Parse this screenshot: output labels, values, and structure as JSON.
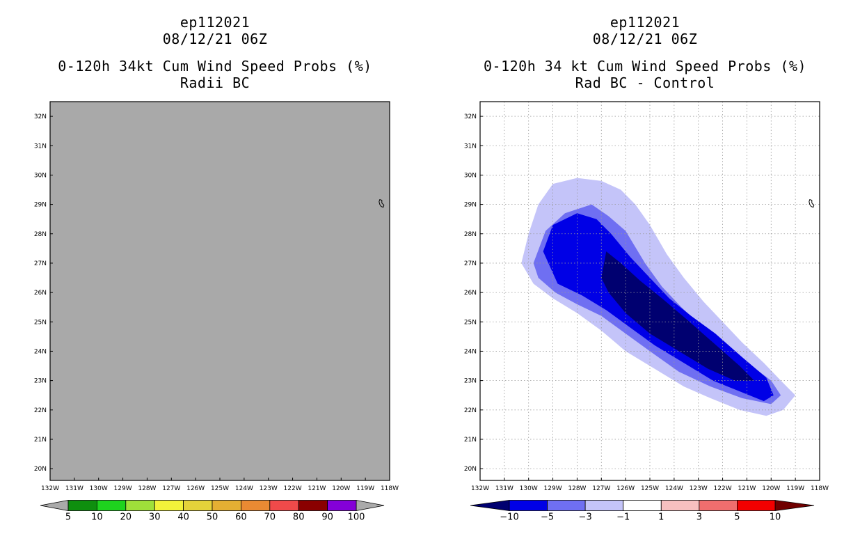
{
  "chart_data": [
    {
      "type": "heatmap",
      "title_lines": [
        "ep112021",
        "08/12/21 06Z",
        "0-120h 34kt Cum Wind Speed Probs (%)",
        "Radii BC"
      ],
      "background_color": "#a9a9a9",
      "xlabel": "",
      "ylabel": "",
      "x_ticks": [
        "132W",
        "131W",
        "130W",
        "129W",
        "128W",
        "127W",
        "126W",
        "125W",
        "124W",
        "123W",
        "122W",
        "121W",
        "120W",
        "119W",
        "118W"
      ],
      "y_ticks": [
        "32N",
        "31N",
        "30N",
        "29N",
        "28N",
        "27N",
        "26N",
        "25N",
        "24N",
        "23N",
        "22N",
        "21N",
        "20N"
      ],
      "xlim": [
        -132,
        -118
      ],
      "ylim": [
        19.6,
        32.5
      ],
      "grid": false,
      "colorbar": {
        "labels": [
          "5",
          "10",
          "20",
          "30",
          "40",
          "50",
          "60",
          "70",
          "80",
          "90",
          "100"
        ],
        "colors": [
          "#0e8f0e",
          "#1ed31e",
          "#9fe03a",
          "#f2f23a",
          "#e5d23a",
          "#e5af33",
          "#ea8a33",
          "#f04a4a",
          "#8a0000",
          "#8400d8"
        ],
        "end_colors": [
          "#aaaaaa",
          "#aaaaaa"
        ]
      }
    },
    {
      "type": "heatmap",
      "title_lines": [
        "ep112021",
        "08/12/21 06Z",
        "0-120h 34 kt Cum Wind Speed Probs (%)",
        "Rad BC - Control"
      ],
      "background_color": "#ffffff",
      "xlabel": "",
      "ylabel": "",
      "x_ticks": [
        "132W",
        "131W",
        "130W",
        "129W",
        "128W",
        "127W",
        "126W",
        "125W",
        "124W",
        "123W",
        "122W",
        "121W",
        "120W",
        "119W",
        "118W"
      ],
      "y_ticks": [
        "32N",
        "31N",
        "30N",
        "29N",
        "28N",
        "27N",
        "26N",
        "25N",
        "24N",
        "23N",
        "22N",
        "21N",
        "20N"
      ],
      "xlim": [
        -132,
        -118
      ],
      "ylim": [
        19.6,
        32.5
      ],
      "grid": true,
      "colorbar": {
        "labels": [
          "-10",
          "-5",
          "-3",
          "-1",
          "1",
          "3",
          "5",
          "10"
        ],
        "colors": [
          "#0000e6",
          "#6f6ff2",
          "#c4c4f9",
          "#ffffff",
          "#f7c0c0",
          "#f06e6e",
          "#f20000"
        ],
        "end_colors": [
          "#000070",
          "#700000"
        ]
      },
      "contours": [
        {
          "level": "-1",
          "color": "#c4c4f9",
          "points": [
            [
              -130.3,
              27.0
            ],
            [
              -130.0,
              28.0
            ],
            [
              -129.6,
              29.0
            ],
            [
              -129.0,
              29.7
            ],
            [
              -128.0,
              29.9
            ],
            [
              -127.0,
              29.8
            ],
            [
              -126.2,
              29.5
            ],
            [
              -125.6,
              29.0
            ],
            [
              -125.0,
              28.3
            ],
            [
              -124.3,
              27.3
            ],
            [
              -123.6,
              26.5
            ],
            [
              -122.8,
              25.7
            ],
            [
              -122.0,
              25.0
            ],
            [
              -121.2,
              24.3
            ],
            [
              -120.3,
              23.6
            ],
            [
              -119.6,
              23.0
            ],
            [
              -119.0,
              22.5
            ],
            [
              -119.5,
              22.0
            ],
            [
              -120.2,
              21.8
            ],
            [
              -121.3,
              22.0
            ],
            [
              -122.5,
              22.4
            ],
            [
              -123.6,
              22.8
            ],
            [
              -124.8,
              23.4
            ],
            [
              -126.0,
              24.0
            ],
            [
              -127.0,
              24.7
            ],
            [
              -128.0,
              25.3
            ],
            [
              -129.0,
              25.8
            ],
            [
              -129.8,
              26.3
            ]
          ]
        },
        {
          "level": "-3",
          "color": "#6f6ff2",
          "points": [
            [
              -129.8,
              27.0
            ],
            [
              -129.3,
              28.1
            ],
            [
              -128.5,
              28.7
            ],
            [
              -127.4,
              29.0
            ],
            [
              -126.7,
              28.6
            ],
            [
              -126.0,
              28.1
            ],
            [
              -125.2,
              27.0
            ],
            [
              -124.5,
              26.2
            ],
            [
              -123.7,
              25.5
            ],
            [
              -122.8,
              24.8
            ],
            [
              -121.8,
              24.1
            ],
            [
              -120.8,
              23.5
            ],
            [
              -120.0,
              23.0
            ],
            [
              -119.6,
              22.5
            ],
            [
              -120.0,
              22.2
            ],
            [
              -121.2,
              22.4
            ],
            [
              -122.5,
              22.8
            ],
            [
              -123.8,
              23.3
            ],
            [
              -125.0,
              24.0
            ],
            [
              -126.0,
              24.6
            ],
            [
              -127.0,
              25.2
            ],
            [
              -128.0,
              25.6
            ],
            [
              -128.9,
              26.0
            ],
            [
              -129.6,
              26.5
            ]
          ]
        },
        {
          "level": "-5",
          "color": "#0000e6",
          "points": [
            [
              -129.4,
              27.4
            ],
            [
              -129.0,
              28.3
            ],
            [
              -128.0,
              28.7
            ],
            [
              -127.2,
              28.5
            ],
            [
              -126.6,
              28.0
            ],
            [
              -125.8,
              27.2
            ],
            [
              -125.0,
              26.5
            ],
            [
              -124.2,
              25.8
            ],
            [
              -123.3,
              25.2
            ],
            [
              -122.3,
              24.6
            ],
            [
              -121.2,
              23.8
            ],
            [
              -120.2,
              23.1
            ],
            [
              -119.9,
              22.5
            ],
            [
              -120.3,
              22.3
            ],
            [
              -121.2,
              22.6
            ],
            [
              -122.4,
              23.0
            ],
            [
              -123.6,
              23.6
            ],
            [
              -124.8,
              24.2
            ],
            [
              -125.8,
              24.8
            ],
            [
              -126.8,
              25.4
            ],
            [
              -127.8,
              25.9
            ],
            [
              -128.8,
              26.3
            ]
          ]
        },
        {
          "level": "-10",
          "color": "#000070",
          "points": [
            [
              -127.0,
              26.5
            ],
            [
              -126.8,
              27.4
            ],
            [
              -126.2,
              27.0
            ],
            [
              -125.4,
              26.4
            ],
            [
              -124.5,
              25.8
            ],
            [
              -123.5,
              25.1
            ],
            [
              -122.4,
              24.3
            ],
            [
              -121.3,
              23.5
            ],
            [
              -120.7,
              23.0
            ],
            [
              -121.5,
              23.0
            ],
            [
              -122.6,
              23.4
            ],
            [
              -123.8,
              24.0
            ],
            [
              -125.0,
              24.6
            ],
            [
              -126.0,
              25.3
            ],
            [
              -126.7,
              26.0
            ]
          ]
        }
      ],
      "annotations": [
        "Guadalupe Island outline near 118.3W 29N"
      ]
    }
  ]
}
